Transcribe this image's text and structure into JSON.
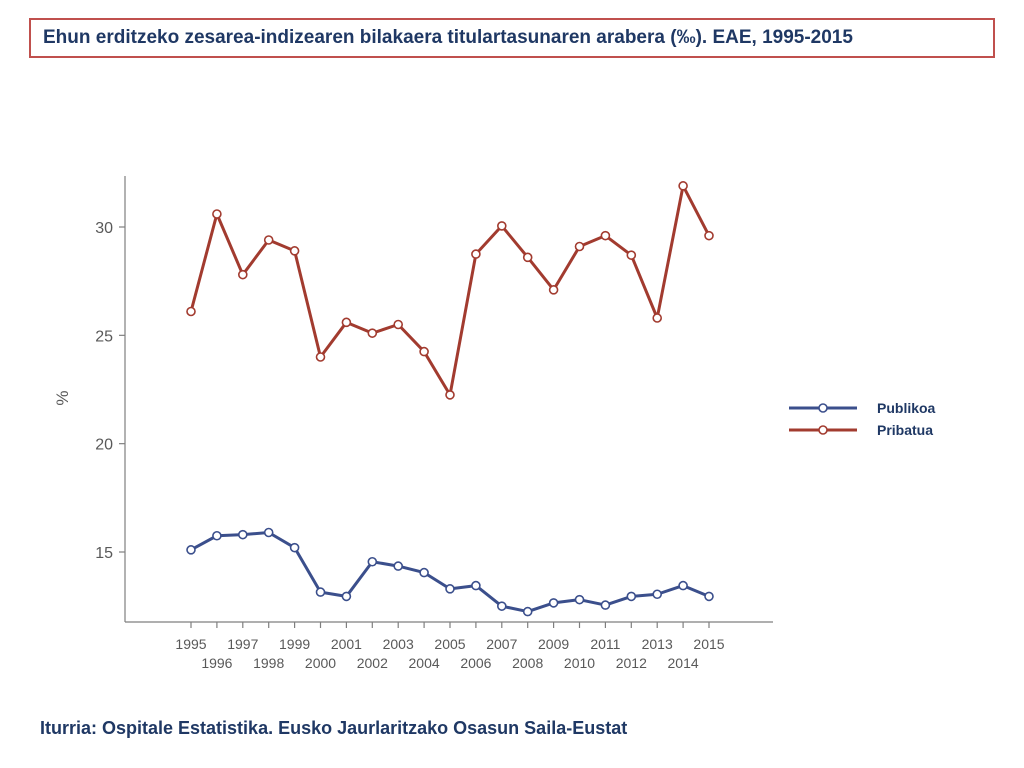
{
  "title": "Ehun erditzeko zesarea-indizearen bilakaera titulartasunaren arabera (‰). EAE, 1995-2015",
  "source": "Iturria: Ospitale Estatistika. Eusko Jaurlaritzako Osasun Saila-Eustat",
  "colors": {
    "title_border": "#c0504d",
    "title_text": "#1f3864",
    "axis": "#7f7f7f",
    "tick_text": "#595959"
  },
  "chart_data": {
    "type": "line",
    "x": [
      1995,
      1996,
      1997,
      1998,
      1999,
      2000,
      2001,
      2002,
      2003,
      2004,
      2005,
      2006,
      2007,
      2008,
      2009,
      2010,
      2011,
      2012,
      2013,
      2014,
      2015
    ],
    "x_tick_labels_top": [
      "1995",
      "1997",
      "1999",
      "2001",
      "2003",
      "2005",
      "2007",
      "2009",
      "2011",
      "2013",
      "2015"
    ],
    "x_tick_labels_bottom": [
      "1996",
      "1998",
      "2000",
      "2002",
      "2004",
      "2006",
      "2008",
      "2010",
      "2012",
      "2014"
    ],
    "y_ticks": [
      15,
      20,
      25,
      30
    ],
    "ylabel": "%",
    "ylim": [
      12,
      32.3
    ],
    "legend_position": "right",
    "series": [
      {
        "name": "Publikoa",
        "color": "#3b4f8c",
        "values": [
          15.1,
          15.75,
          15.8,
          15.9,
          15.2,
          13.15,
          12.95,
          14.55,
          14.35,
          14.05,
          13.3,
          13.45,
          12.5,
          12.25,
          12.65,
          12.8,
          12.55,
          12.95,
          13.05,
          13.45,
          12.95
        ]
      },
      {
        "name": "Pribatua",
        "color": "#a23b2f",
        "values": [
          26.1,
          30.6,
          27.8,
          29.4,
          28.9,
          24.0,
          25.6,
          25.1,
          25.5,
          24.25,
          22.25,
          28.75,
          30.05,
          28.6,
          27.1,
          29.1,
          29.6,
          28.7,
          25.8,
          31.9,
          29.6
        ]
      }
    ]
  }
}
